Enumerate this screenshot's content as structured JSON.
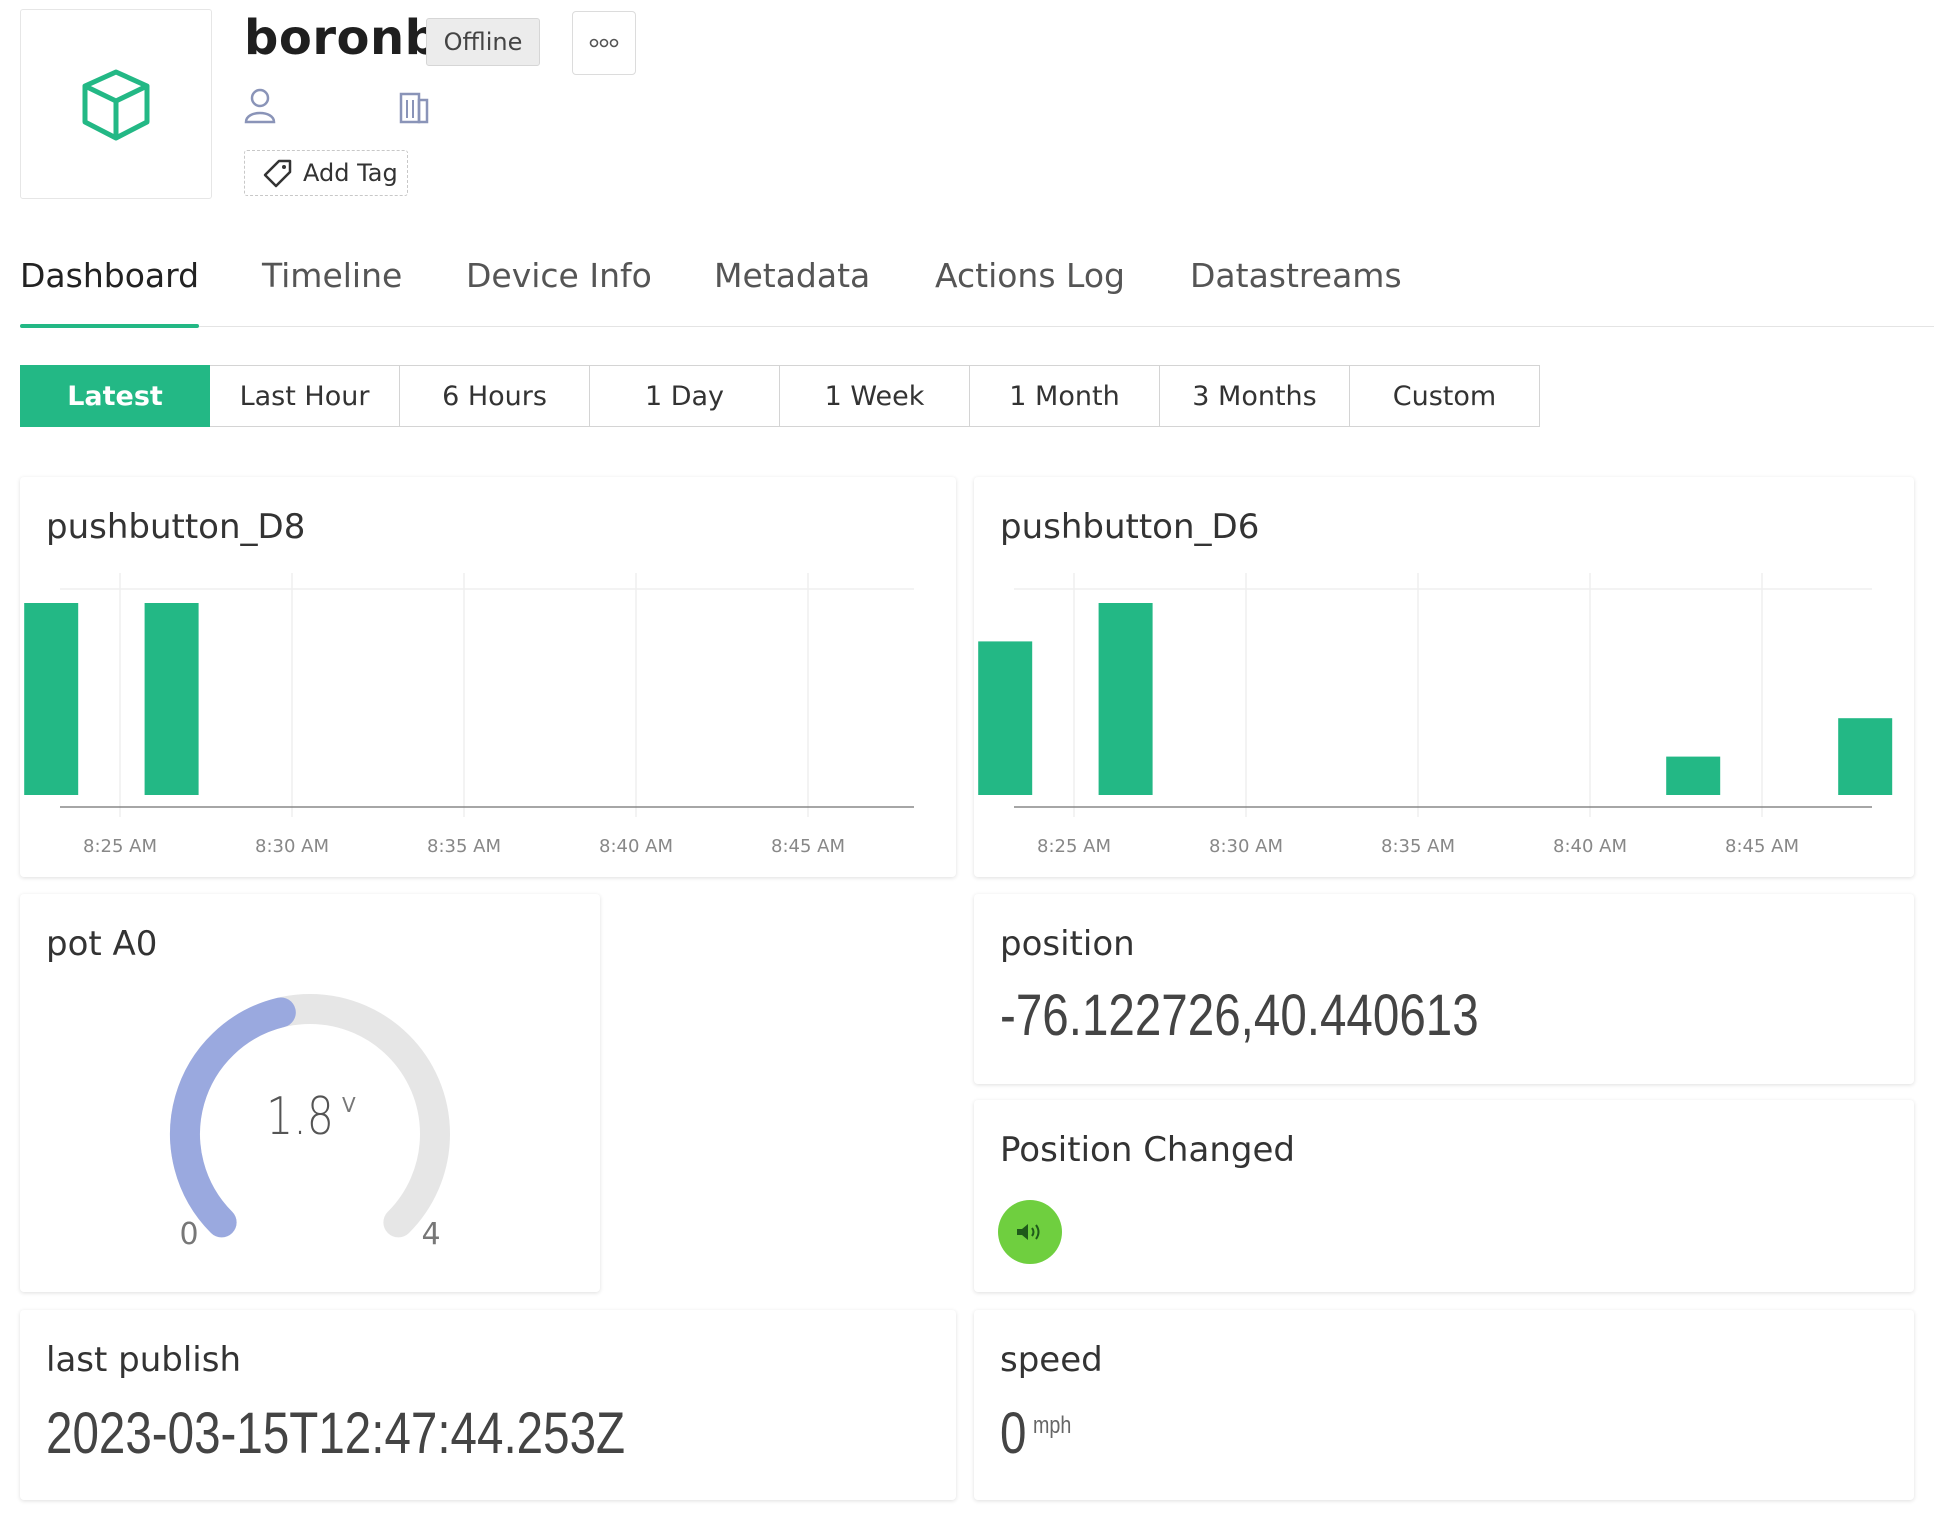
{
  "device": {
    "name": "boronb",
    "status": "Offline",
    "icon": "cube-icon"
  },
  "header": {
    "more_icon": "more-dots-icon",
    "user_icon": "user-icon",
    "org_icon": "building-icon",
    "add_tag_label": "Add Tag"
  },
  "tabs": [
    {
      "label": "Dashboard",
      "active": true
    },
    {
      "label": "Timeline"
    },
    {
      "label": "Device Info"
    },
    {
      "label": "Metadata"
    },
    {
      "label": "Actions Log"
    },
    {
      "label": "Datastreams"
    }
  ],
  "time_range": [
    "Latest",
    "Last Hour",
    "6 Hours",
    "1 Day",
    "1 Week",
    "1 Month",
    "3 Months",
    "Custom"
  ],
  "time_range_active": "Latest",
  "colors": {
    "accent": "#23b885",
    "gauge_fill": "#9aa9df",
    "gauge_track": "#e6e6e6",
    "event_led": "#6fcf3f"
  },
  "widgets": {
    "d8": {
      "title": "pushbutton_D8"
    },
    "d6": {
      "title": "pushbutton_D6"
    },
    "pot": {
      "title": "pot A0",
      "value": "1.8",
      "unit": "V",
      "min": "0",
      "max": "4"
    },
    "position": {
      "title": "position",
      "value": "-76.122726,40.440613"
    },
    "position_changed": {
      "title": "Position Changed",
      "icon": "speaker-icon"
    },
    "last_publish": {
      "title": "last publish",
      "value": "2023-03-15T12:47:44.253Z"
    },
    "speed": {
      "title": "speed",
      "value": "0",
      "unit": "mph"
    }
  },
  "chart_data": [
    {
      "type": "bar",
      "title": "pushbutton_D8",
      "x_ticks": [
        "8:25 AM",
        "8:30 AM",
        "8:35 AM",
        "8:40 AM",
        "8:45 AM"
      ],
      "series": [
        {
          "values": [
            {
              "t": "8:23",
              "v": 1
            },
            {
              "t": "8:26.5",
              "v": 1
            }
          ]
        }
      ],
      "ylim": [
        0,
        1
      ]
    },
    {
      "type": "bar",
      "title": "pushbutton_D6",
      "x_ticks": [
        "8:25 AM",
        "8:30 AM",
        "8:35 AM",
        "8:40 AM",
        "8:45 AM"
      ],
      "series": [
        {
          "values": [
            {
              "t": "8:23",
              "v": 0.8
            },
            {
              "t": "8:26.5",
              "v": 1
            },
            {
              "t": "8:43",
              "v": 0.2
            },
            {
              "t": "8:48",
              "v": 0.4
            }
          ]
        }
      ],
      "ylim": [
        0,
        1
      ]
    },
    {
      "type": "gauge",
      "title": "pot A0",
      "value": 1.8,
      "min": 0,
      "max": 4,
      "unit": "V"
    }
  ]
}
